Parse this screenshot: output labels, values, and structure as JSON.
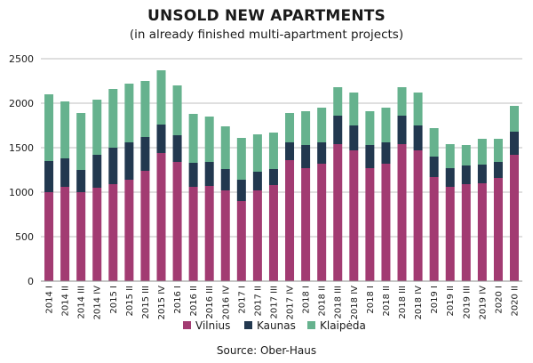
{
  "title": "UNSOLD NEW APARTMENTS",
  "subtitle": "(in already finished multi-apartment projects)",
  "source": "Source: Ober-Haus",
  "colors": {
    "Vilnius": "#a23b72",
    "Kaunas": "#22384f",
    "Klaipėda": "#66b28e",
    "grid": "#bfbfbf"
  },
  "chart_data": {
    "type": "bar",
    "stacked": true,
    "categories": [
      "2014 I",
      "2014 II",
      "2014 III",
      "2014 IV",
      "2015 I",
      "2015 II",
      "2015 III",
      "2015 IV",
      "2016 I",
      "2016 II",
      "2016 III",
      "2016 IV",
      "2017 I",
      "2017 II",
      "2017 III",
      "2017 IV",
      "2018 I",
      "2018 II",
      "2018 III",
      "2018 IV",
      "2018 I",
      "2018 II",
      "2018 III",
      "2018 IV",
      "2019 I",
      "2019 II",
      "2019 III",
      "2019 IV",
      "2020 I",
      "2020 II"
    ],
    "series": [
      {
        "name": "Vilnius",
        "values": [
          1000,
          1060,
          1000,
          1050,
          1090,
          1140,
          1240,
          1440,
          1340,
          1060,
          1070,
          1020,
          900,
          1020,
          1080,
          1360,
          1270,
          1320,
          1540,
          1470,
          1270,
          1320,
          1540,
          1470,
          1170,
          1060,
          1090,
          1100,
          1160,
          1420
        ]
      },
      {
        "name": "Kaunas",
        "values": [
          350,
          320,
          250,
          370,
          410,
          420,
          380,
          320,
          300,
          270,
          270,
          240,
          240,
          210,
          180,
          200,
          260,
          240,
          320,
          280,
          260,
          240,
          320,
          280,
          230,
          210,
          210,
          210,
          180,
          260
        ]
      },
      {
        "name": "Klaipėda",
        "values": [
          750,
          640,
          640,
          620,
          660,
          660,
          630,
          610,
          560,
          550,
          510,
          480,
          470,
          420,
          410,
          330,
          380,
          390,
          320,
          370,
          380,
          390,
          320,
          370,
          320,
          270,
          230,
          290,
          260,
          290
        ]
      }
    ],
    "ylim": [
      0,
      2500
    ],
    "yticks": [
      0,
      500,
      1000,
      1500,
      2000,
      2500
    ],
    "grid": true,
    "legend": "bottom"
  }
}
